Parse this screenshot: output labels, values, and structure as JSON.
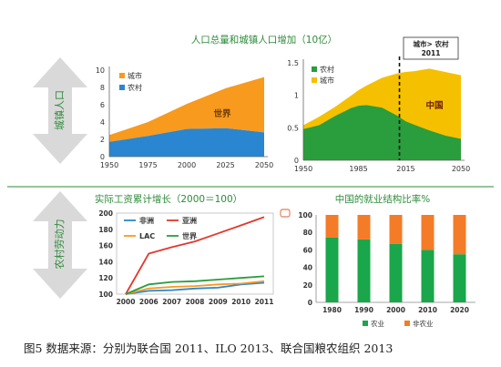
{
  "side_labels": {
    "top": "城镇人口",
    "bottom": "农村劳动力"
  },
  "divider_color": "#2e8b3a",
  "colors": {
    "urban": "#f79a1e",
    "rural": "#2a86d0",
    "china_urban": "#f5c000",
    "china_rural": "#2a9d3c",
    "africa": "#2a86d0",
    "asia": "#e2382b",
    "lac": "#f79a1e",
    "world": "#2a9d3c",
    "agri": "#1aa64b",
    "nonagri": "#f47b27",
    "title": "#2e8b3a"
  },
  "captions": {
    "figure": "图5  数据来源：分别为联合国 2011、ILO 2013、联合国粮农组织 2013"
  },
  "chart_data": [
    {
      "id": "world_pop",
      "type": "area",
      "title": "人口总量和城镇人口增加（10亿）",
      "x": [
        1950,
        1975,
        2000,
        2025,
        2050
      ],
      "x_ticks": [
        "1950",
        "1975",
        "2000",
        "2025",
        "2050"
      ],
      "ylim": [
        0,
        10
      ],
      "y_ticks": [
        "0",
        "2",
        "4",
        "6",
        "8",
        "10"
      ],
      "annotation": "世界",
      "legend": [
        "城市",
        "农村"
      ],
      "legend_position": "top-left",
      "series": [
        {
          "name": "农村",
          "values": [
            1.7,
            2.4,
            3.2,
            3.3,
            2.8
          ]
        },
        {
          "name": "城市",
          "values": [
            0.8,
            1.6,
            2.9,
            4.6,
            6.4
          ]
        }
      ]
    },
    {
      "id": "china_pop",
      "type": "area",
      "x": [
        1950,
        1960,
        1970,
        1980,
        1985,
        1990,
        2000,
        2010,
        2015,
        2020,
        2030,
        2040,
        2050
      ],
      "x_ticks": [
        "1950",
        "1985",
        "2015",
        "2050"
      ],
      "ylim": [
        0,
        1.5
      ],
      "y_ticks": [
        "0",
        "0.5",
        "1",
        "1.5"
      ],
      "annotation": "中国",
      "callout": "城市> 农村\n2011",
      "marker_x": 2011,
      "legend": [
        "农村",
        "城市"
      ],
      "legend_position": "top-left",
      "series": [
        {
          "name": "农村",
          "values": [
            0.48,
            0.54,
            0.68,
            0.8,
            0.84,
            0.85,
            0.81,
            0.68,
            0.6,
            0.55,
            0.46,
            0.38,
            0.33
          ]
        },
        {
          "name": "城市",
          "values": [
            0.06,
            0.13,
            0.14,
            0.19,
            0.24,
            0.3,
            0.46,
            0.66,
            0.76,
            0.82,
            0.95,
            0.98,
            0.98
          ]
        }
      ]
    },
    {
      "id": "wages",
      "type": "line",
      "title": "实际工资累计增长（2000＝100）",
      "categories": [
        "2000",
        "2006",
        "2007",
        "2008",
        "2009",
        "2010",
        "2011"
      ],
      "ylim": [
        100,
        200
      ],
      "y_ticks": [
        "100",
        "120",
        "140",
        "160",
        "180",
        "200"
      ],
      "legend_position": "top-left",
      "series": [
        {
          "name": "非洲",
          "values": [
            100,
            104,
            105,
            107,
            108,
            112,
            114
          ]
        },
        {
          "name": "亚洲",
          "values": [
            100,
            150,
            158,
            165,
            175,
            185,
            195
          ]
        },
        {
          "name": "LAC",
          "values": [
            100,
            107,
            109,
            110,
            112,
            113,
            116
          ]
        },
        {
          "name": "世界",
          "values": [
            100,
            112,
            115,
            116,
            118,
            120,
            122
          ]
        }
      ]
    },
    {
      "id": "employment",
      "type": "bar",
      "title": "中国的就业结构比率%",
      "categories": [
        "1980",
        "1990",
        "2000",
        "2010",
        "2020"
      ],
      "ylim": [
        0,
        100
      ],
      "y_ticks": [
        "0",
        "20",
        "40",
        "60",
        "80",
        "100"
      ],
      "legend_position": "bottom",
      "series": [
        {
          "name": "农业",
          "values": [
            74,
            72,
            67,
            60,
            55
          ]
        },
        {
          "name": "非农业",
          "values": [
            26,
            28,
            33,
            40,
            45
          ]
        }
      ]
    }
  ]
}
